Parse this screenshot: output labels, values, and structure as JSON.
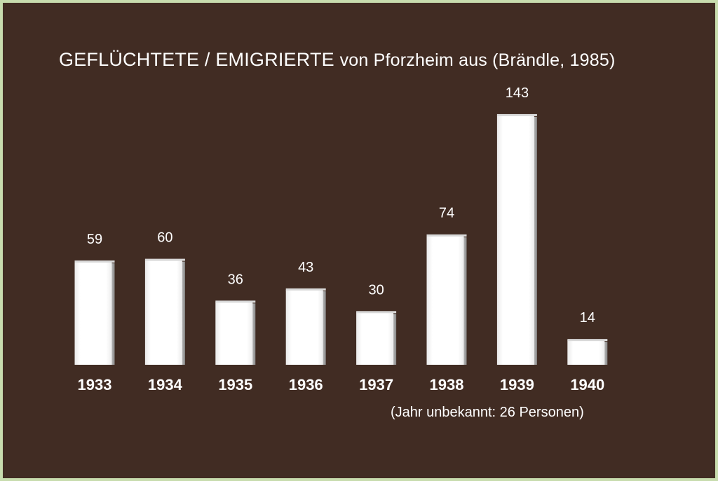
{
  "title_main": "GEFLÜCHTETE / EMIGRIERTE",
  "title_sub": "von Pforzheim aus (Brändle, 1985)",
  "note": "(Jahr unbekannt: 26 Personen)",
  "colors": {
    "background": "#412c23",
    "border": "#c8dcae",
    "bar": "#ffffff",
    "text": "#ffffff"
  },
  "chart_data": {
    "type": "bar",
    "categories": [
      "1933",
      "1934",
      "1935",
      "1936",
      "1937",
      "1938",
      "1939",
      "1940"
    ],
    "values": [
      59,
      60,
      36,
      43,
      30,
      74,
      143,
      14
    ],
    "title": "GEFLÜCHTETE / EMIGRIERTE von Pforzheim aus (Brändle, 1985)",
    "xlabel": "",
    "ylabel": "",
    "ylim": [
      0,
      150
    ],
    "grid": false,
    "data_labels": true
  }
}
